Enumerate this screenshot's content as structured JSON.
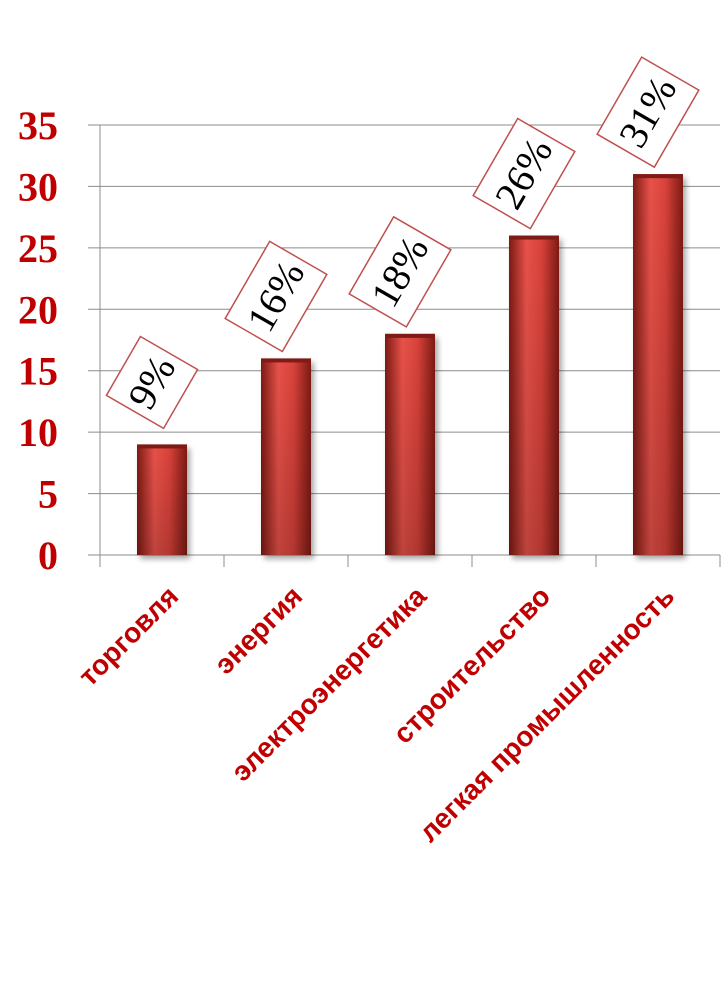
{
  "chart_data": {
    "type": "bar",
    "categories": [
      "торговля",
      "энергия",
      "электроэнергетика",
      "строительство",
      "легкая промышленность"
    ],
    "values": [
      9,
      16,
      18,
      26,
      31
    ],
    "data_labels": [
      "9%",
      "16%",
      "18%",
      "26%",
      "31%"
    ],
    "title": "",
    "xlabel": "",
    "ylabel": "",
    "ylim": [
      0,
      35
    ],
    "y_ticks": [
      0,
      5,
      10,
      15,
      20,
      25,
      30,
      35
    ],
    "grid": true,
    "legend": "none",
    "colors": {
      "bar": "#c0392b",
      "bar_light": "#e8524a",
      "bar_dark": "#7d1a14",
      "text": "#c00000",
      "label_border": "#c0504d"
    }
  }
}
